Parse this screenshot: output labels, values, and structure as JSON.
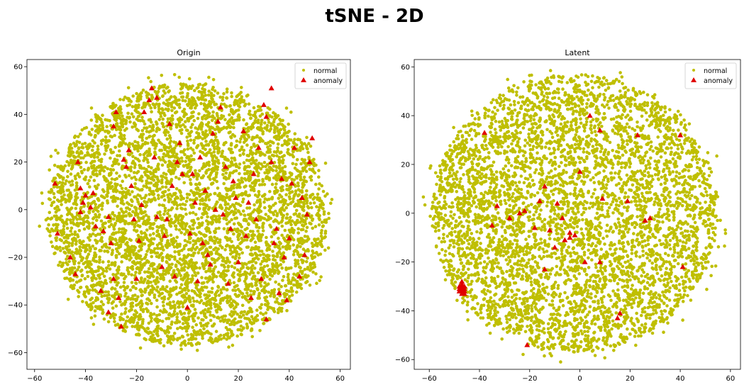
{
  "figure": {
    "title": "tSNE - 2D"
  },
  "colors": {
    "normal": "#bfbf00",
    "anomaly": "#e00000",
    "axis": "#000000"
  },
  "chart_data": [
    {
      "type": "scatter",
      "title": "Origin",
      "xlabel": "",
      "ylabel": "",
      "xlim": [
        -63,
        64
      ],
      "ylim": [
        -67,
        63
      ],
      "xticks": [
        -60,
        -40,
        -20,
        0,
        20,
        40,
        60
      ],
      "yticks": [
        -60,
        -40,
        -20,
        0,
        20,
        40,
        60
      ],
      "xtick_labels": [
        "−60",
        "−40",
        "−20",
        "0",
        "20",
        "40",
        "60"
      ],
      "ytick_labels": [
        "−60",
        "−40",
        "−20",
        "0",
        "20",
        "40",
        "60"
      ],
      "legend": {
        "placement": "top-right",
        "entries": [
          {
            "label": "normal",
            "marker": "dot"
          },
          {
            "label": "anomaly",
            "marker": "triangle"
          }
        ]
      },
      "normal_cloud": {
        "center": [
          0,
          -2
        ],
        "radius": 55
      },
      "series": [
        {
          "name": "anomaly",
          "points": [
            [
              -52,
              11
            ],
            [
              -51,
              -10
            ],
            [
              -46,
              -20
            ],
            [
              -44,
              -27
            ],
            [
              -43,
              20
            ],
            [
              -42,
              9
            ],
            [
              -41,
              3
            ],
            [
              -40,
              6
            ],
            [
              -38,
              1
            ],
            [
              -37,
              7
            ],
            [
              -36,
              -7
            ],
            [
              -42,
              -1
            ],
            [
              -34,
              -34
            ],
            [
              -33,
              -9
            ],
            [
              -31,
              -43
            ],
            [
              -31,
              -3
            ],
            [
              -30,
              -14
            ],
            [
              -29,
              -29
            ],
            [
              -27,
              -37
            ],
            [
              -26,
              -49
            ],
            [
              -29,
              35
            ],
            [
              -28,
              41
            ],
            [
              -25,
              21
            ],
            [
              -24,
              18
            ],
            [
              -23,
              25
            ],
            [
              -22,
              10
            ],
            [
              -21,
              -4
            ],
            [
              -20,
              -29
            ],
            [
              -19,
              -13
            ],
            [
              -18,
              2
            ],
            [
              -17,
              41
            ],
            [
              -15,
              46
            ],
            [
              -14,
              51
            ],
            [
              -13,
              22
            ],
            [
              -12,
              -3
            ],
            [
              -12,
              47
            ],
            [
              -10,
              -24
            ],
            [
              -9,
              -11
            ],
            [
              -8,
              -4
            ],
            [
              -7,
              36
            ],
            [
              -6,
              10
            ],
            [
              -5,
              -28
            ],
            [
              -4,
              20
            ],
            [
              -3,
              28
            ],
            [
              -2,
              15
            ],
            [
              0,
              -41
            ],
            [
              1,
              -10
            ],
            [
              2,
              15
            ],
            [
              3,
              3
            ],
            [
              4,
              -30
            ],
            [
              5,
              22
            ],
            [
              6,
              -14
            ],
            [
              7,
              8
            ],
            [
              8,
              -19
            ],
            [
              9,
              -23
            ],
            [
              10,
              32
            ],
            [
              11,
              0
            ],
            [
              12,
              37
            ],
            [
              13,
              43
            ],
            [
              14,
              -2
            ],
            [
              15,
              18
            ],
            [
              16,
              -31
            ],
            [
              17,
              -8
            ],
            [
              18,
              12
            ],
            [
              19,
              5
            ],
            [
              20,
              -22
            ],
            [
              22,
              33
            ],
            [
              23,
              -11
            ],
            [
              24,
              3
            ],
            [
              25,
              -37
            ],
            [
              26,
              15
            ],
            [
              27,
              -4
            ],
            [
              28,
              26
            ],
            [
              29,
              -29
            ],
            [
              30,
              44
            ],
            [
              31,
              -46
            ],
            [
              33,
              20
            ],
            [
              34,
              -14
            ],
            [
              35,
              -8
            ],
            [
              36,
              -35
            ],
            [
              37,
              13
            ],
            [
              38,
              -20
            ],
            [
              39,
              -38
            ],
            [
              40,
              -12
            ],
            [
              41,
              11
            ],
            [
              42,
              26
            ],
            [
              44,
              -28
            ],
            [
              45,
              5
            ],
            [
              46,
              -19
            ],
            [
              47,
              -2
            ],
            [
              48,
              20
            ],
            [
              49,
              30
            ],
            [
              31,
              39
            ],
            [
              33,
              51
            ]
          ]
        }
      ]
    },
    {
      "type": "scatter",
      "title": "Latent",
      "xlabel": "",
      "ylabel": "",
      "xlim": [
        -66,
        64
      ],
      "ylim": [
        -64,
        63
      ],
      "xticks": [
        -60,
        -40,
        -20,
        0,
        20,
        40,
        60
      ],
      "yticks": [
        -60,
        -40,
        -20,
        0,
        20,
        40,
        60
      ],
      "xtick_labels": [
        "−60",
        "−40",
        "−20",
        "0",
        "20",
        "40",
        "60"
      ],
      "ytick_labels": [
        "−60",
        "−40",
        "−20",
        "0",
        "20",
        "40",
        "60"
      ],
      "legend": {
        "placement": "top-right",
        "entries": [
          {
            "label": "normal",
            "marker": "dot"
          },
          {
            "label": "anomaly",
            "marker": "triangle"
          }
        ]
      },
      "normal_cloud": {
        "center": [
          -2,
          0
        ],
        "radius": 57
      },
      "series": [
        {
          "name": "anomaly",
          "points": [
            [
              -38,
              33
            ],
            [
              -35,
              -5
            ],
            [
              -33,
              3
            ],
            [
              -28,
              -2
            ],
            [
              -24,
              0
            ],
            [
              -22,
              1
            ],
            [
              -21,
              -54
            ],
            [
              -18,
              -6
            ],
            [
              -16,
              5
            ],
            [
              -14,
              -23
            ],
            [
              -14,
              11
            ],
            [
              -12,
              -7
            ],
            [
              -10,
              -14
            ],
            [
              -9,
              4
            ],
            [
              -7,
              -2
            ],
            [
              -6,
              -11
            ],
            [
              -4,
              -8
            ],
            [
              -2,
              -9
            ],
            [
              0,
              17
            ],
            [
              2,
              -20
            ],
            [
              4,
              40
            ],
            [
              8,
              34
            ],
            [
              8,
              -20
            ],
            [
              9,
              6
            ],
            [
              15,
              -43
            ],
            [
              16,
              -41
            ],
            [
              19,
              5
            ],
            [
              23,
              32
            ],
            [
              26,
              -3
            ],
            [
              28,
              -2
            ],
            [
              40,
              32
            ],
            [
              41,
              -22
            ],
            [
              -4,
              -10
            ]
          ]
        },
        {
          "name": "anomaly-cluster",
          "points": [
            [
              -48,
              -30
            ],
            [
              -48,
              -31
            ],
            [
              -48,
              -32
            ],
            [
              -47,
              -29
            ],
            [
              -47,
              -30
            ],
            [
              -47,
              -31
            ],
            [
              -47,
              -32
            ],
            [
              -47,
              -33
            ],
            [
              -46,
              -30
            ],
            [
              -46,
              -31
            ],
            [
              -46,
              -32
            ],
            [
              -46,
              -33
            ],
            [
              -47,
              -28
            ]
          ]
        }
      ]
    }
  ]
}
